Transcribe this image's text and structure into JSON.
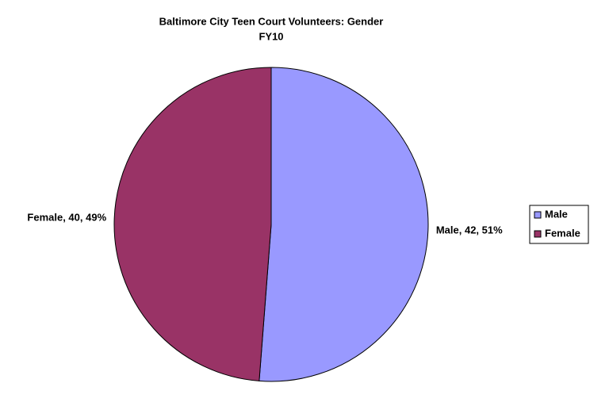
{
  "chart_data": {
    "type": "pie",
    "title": "Baltimore City Teen Court Volunteers: Gender",
    "subtitle": "FY10",
    "categories": [
      "Male",
      "Female"
    ],
    "values": [
      42,
      40
    ],
    "value_labels": [
      "Male, 42, 51%",
      "Female, 40, 49%"
    ],
    "colors": [
      "#9999ff",
      "#993366"
    ],
    "legend": "right"
  }
}
